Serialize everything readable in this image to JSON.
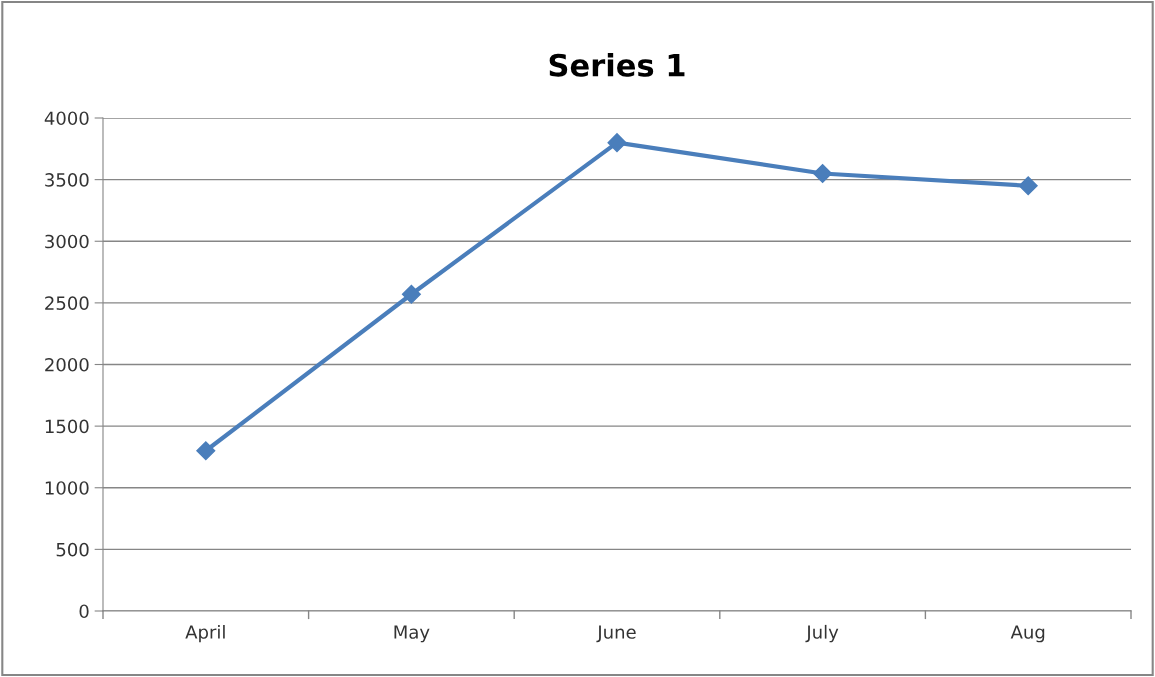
{
  "chart_data": {
    "type": "line",
    "title": "Series 1",
    "categories": [
      "April",
      "May",
      "June",
      "July",
      "Aug"
    ],
    "series": [
      {
        "color": "#4a7ebb",
        "values": [
          1300,
          2570,
          3800,
          3550,
          3450
        ]
      }
    ],
    "ylim": [
      0,
      4000
    ],
    "yticks": [
      0,
      500,
      1000,
      1500,
      2000,
      2500,
      3000,
      3500,
      4000
    ],
    "grid": "y",
    "marker": "diamond",
    "line_style": "solid"
  }
}
